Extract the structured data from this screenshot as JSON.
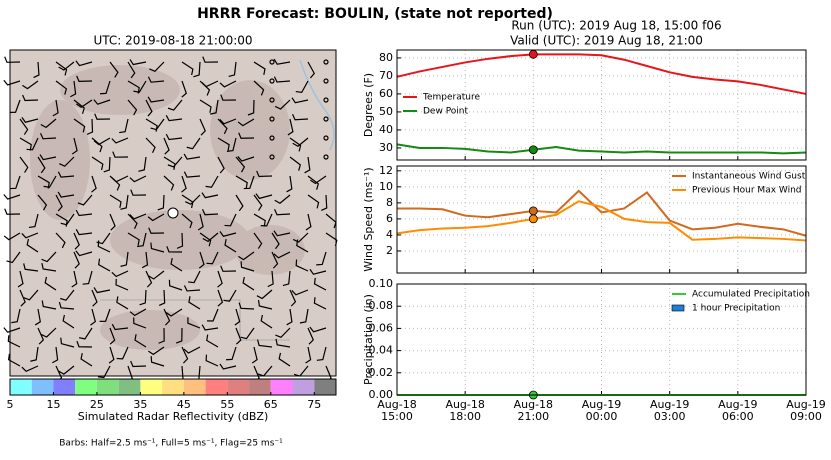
{
  "suptitle": "HRRR Forecast: BOULIN, (state not reported)",
  "chart_data": [
    {
      "type": "map",
      "title": "UTC: 2019-08-18 21:00:00",
      "note": "Barbs: Half=2.5 ms⁻¹, Full=5 ms⁻¹, Flag=25 ms⁻¹"
    },
    {
      "type": "colorbar",
      "xlabel": "Simulated Radar Reflectivity (dBZ)",
      "xlim": [
        5,
        80
      ],
      "xticks": [
        5,
        15,
        25,
        35,
        45,
        55,
        65,
        75
      ],
      "colors": [
        "#7fffff",
        "#7fbfff",
        "#7f7fff",
        "#7fff7f",
        "#7fdf7f",
        "#7fbf7f",
        "#ffff7f",
        "#ffdf7f",
        "#ffbf7f",
        "#ff7f7f",
        "#df7f7f",
        "#bf7f7f",
        "#ff7fff",
        "#bf9fdf",
        "#7f7f7f"
      ]
    },
    {
      "type": "line",
      "title": "Run (UTC): 2019 Aug 18, 15:00 f06",
      "subtitle": "Valid (UTC): 2019 Aug 18, 21:00",
      "ylabel": "Degrees (F)",
      "x": [
        "2019-08-18T15:00",
        "2019-08-18T16:00",
        "2019-08-18T17:00",
        "2019-08-18T18:00",
        "2019-08-18T19:00",
        "2019-08-18T20:00",
        "2019-08-18T21:00",
        "2019-08-18T22:00",
        "2019-08-18T23:00",
        "2019-08-19T00:00",
        "2019-08-19T01:00",
        "2019-08-19T02:00",
        "2019-08-19T03:00",
        "2019-08-19T04:00",
        "2019-08-19T05:00",
        "2019-08-19T06:00",
        "2019-08-19T07:00",
        "2019-08-19T08:00",
        "2019-08-19T09:00"
      ],
      "xlim": [
        "2019-08-18T15:00",
        "2019-08-19T09:00"
      ],
      "xticks": [
        "2019-08-18T15:00",
        "2019-08-18T18:00",
        "2019-08-18T21:00",
        "2019-08-19T00:00",
        "2019-08-19T03:00",
        "2019-08-19T06:00",
        "2019-08-19T09:00"
      ],
      "ylim": [
        23.3,
        84.4
      ],
      "yticks": [
        30,
        40,
        50,
        60,
        70,
        80
      ],
      "grid": true,
      "legend": "center left",
      "marker_x": "2019-08-18T21:00",
      "series": [
        {
          "name": "Temperature",
          "color": "#e8141a",
          "values": [
            69.5,
            72.5,
            75,
            77.5,
            79.5,
            81,
            82,
            82,
            82,
            81.5,
            79,
            75.5,
            72,
            69.5,
            68,
            67,
            65,
            62.5,
            60
          ]
        },
        {
          "name": "Dew Point",
          "color": "#138a13",
          "values": [
            32,
            30,
            30,
            29.5,
            28,
            27.5,
            29,
            30.5,
            28.5,
            28,
            27.5,
            28,
            27.5,
            27.5,
            27.5,
            27.5,
            27.5,
            27,
            27.5
          ]
        }
      ]
    },
    {
      "type": "line",
      "ylabel": "Wind Speed (ms⁻¹)",
      "x": [
        "2019-08-18T15:00",
        "2019-08-18T16:00",
        "2019-08-18T17:00",
        "2019-08-18T18:00",
        "2019-08-18T19:00",
        "2019-08-18T20:00",
        "2019-08-18T21:00",
        "2019-08-18T22:00",
        "2019-08-18T23:00",
        "2019-08-19T00:00",
        "2019-08-19T01:00",
        "2019-08-19T02:00",
        "2019-08-19T03:00",
        "2019-08-19T04:00",
        "2019-08-19T05:00",
        "2019-08-19T06:00",
        "2019-08-19T07:00",
        "2019-08-19T08:00",
        "2019-08-19T09:00"
      ],
      "xlim": [
        "2019-08-18T15:00",
        "2019-08-19T09:00"
      ],
      "xticks": [
        "2019-08-18T15:00",
        "2019-08-18T18:00",
        "2019-08-18T21:00",
        "2019-08-19T00:00",
        "2019-08-19T03:00",
        "2019-08-19T06:00",
        "2019-08-19T09:00"
      ],
      "ylim": [
        -0.75,
        12.6
      ],
      "yticks": [
        2,
        4,
        6,
        8,
        10,
        12
      ],
      "grid": true,
      "legend": "upper right",
      "marker_x": "2019-08-18T21:00",
      "series": [
        {
          "name": "Instantaneous Wind Gust",
          "color": "#d2691e",
          "values": [
            7.3,
            7.3,
            7.2,
            6.4,
            6.2,
            6.6,
            7.0,
            6.8,
            9.5,
            6.8,
            7.3,
            9.3,
            5.8,
            4.7,
            4.9,
            5.4,
            5.0,
            4.7,
            3.9
          ]
        },
        {
          "name": "Previous Hour Max Wind",
          "color": "#ff8c00",
          "values": [
            4.2,
            4.6,
            4.8,
            4.9,
            5.1,
            5.5,
            6.0,
            6.5,
            8.2,
            7.5,
            6.0,
            5.6,
            5.5,
            3.4,
            3.5,
            3.7,
            3.6,
            3.5,
            3.3
          ]
        }
      ]
    },
    {
      "type": "line",
      "ylabel": "Precipitation (in)",
      "x": [
        "2019-08-18T15:00",
        "2019-08-18T16:00",
        "2019-08-18T17:00",
        "2019-08-18T18:00",
        "2019-08-18T19:00",
        "2019-08-18T20:00",
        "2019-08-18T21:00",
        "2019-08-18T22:00",
        "2019-08-18T23:00",
        "2019-08-19T00:00",
        "2019-08-19T01:00",
        "2019-08-19T02:00",
        "2019-08-19T03:00",
        "2019-08-19T04:00",
        "2019-08-19T05:00",
        "2019-08-19T06:00",
        "2019-08-19T07:00",
        "2019-08-19T08:00",
        "2019-08-19T09:00"
      ],
      "xlim": [
        "2019-08-18T15:00",
        "2019-08-19T09:00"
      ],
      "xticks": [
        {
          "value": "2019-08-18T15:00",
          "label": "Aug-18 15:00"
        },
        {
          "value": "2019-08-18T18:00",
          "label": "Aug-18 18:00"
        },
        {
          "value": "2019-08-18T21:00",
          "label": "Aug-18 21:00"
        },
        {
          "value": "2019-08-19T00:00",
          "label": "Aug-19 00:00"
        },
        {
          "value": "2019-08-19T03:00",
          "label": "Aug-19 03:00"
        },
        {
          "value": "2019-08-19T06:00",
          "label": "Aug-19 06:00"
        },
        {
          "value": "2019-08-19T09:00",
          "label": "Aug-19 09:00"
        }
      ],
      "ylim": [
        0,
        0.1
      ],
      "yticks": [
        {
          "value": 0,
          "label": "0.00"
        },
        {
          "value": 0.02,
          "label": "0.02"
        },
        {
          "value": 0.04,
          "label": "0.04"
        },
        {
          "value": 0.06,
          "label": "0.06"
        },
        {
          "value": 0.08,
          "label": "0.08"
        },
        {
          "value": 0.1,
          "label": "0.10"
        }
      ],
      "grid": true,
      "legend": "upper right",
      "marker_x": "2019-08-18T21:00",
      "series": [
        {
          "name": "Accumulated Precipitation",
          "color": "#32cd32",
          "values": [
            0,
            0,
            0,
            0,
            0,
            0,
            0,
            0,
            0,
            0,
            0,
            0,
            0,
            0,
            0,
            0,
            0,
            0,
            0
          ]
        },
        {
          "name": "1 hour Precipitation",
          "color": "#1e7fd8",
          "kind": "bar",
          "values": [
            0,
            0,
            0,
            0,
            0,
            0,
            0,
            0,
            0,
            0,
            0,
            0,
            0,
            0,
            0,
            0,
            0,
            0,
            0
          ]
        }
      ]
    }
  ]
}
